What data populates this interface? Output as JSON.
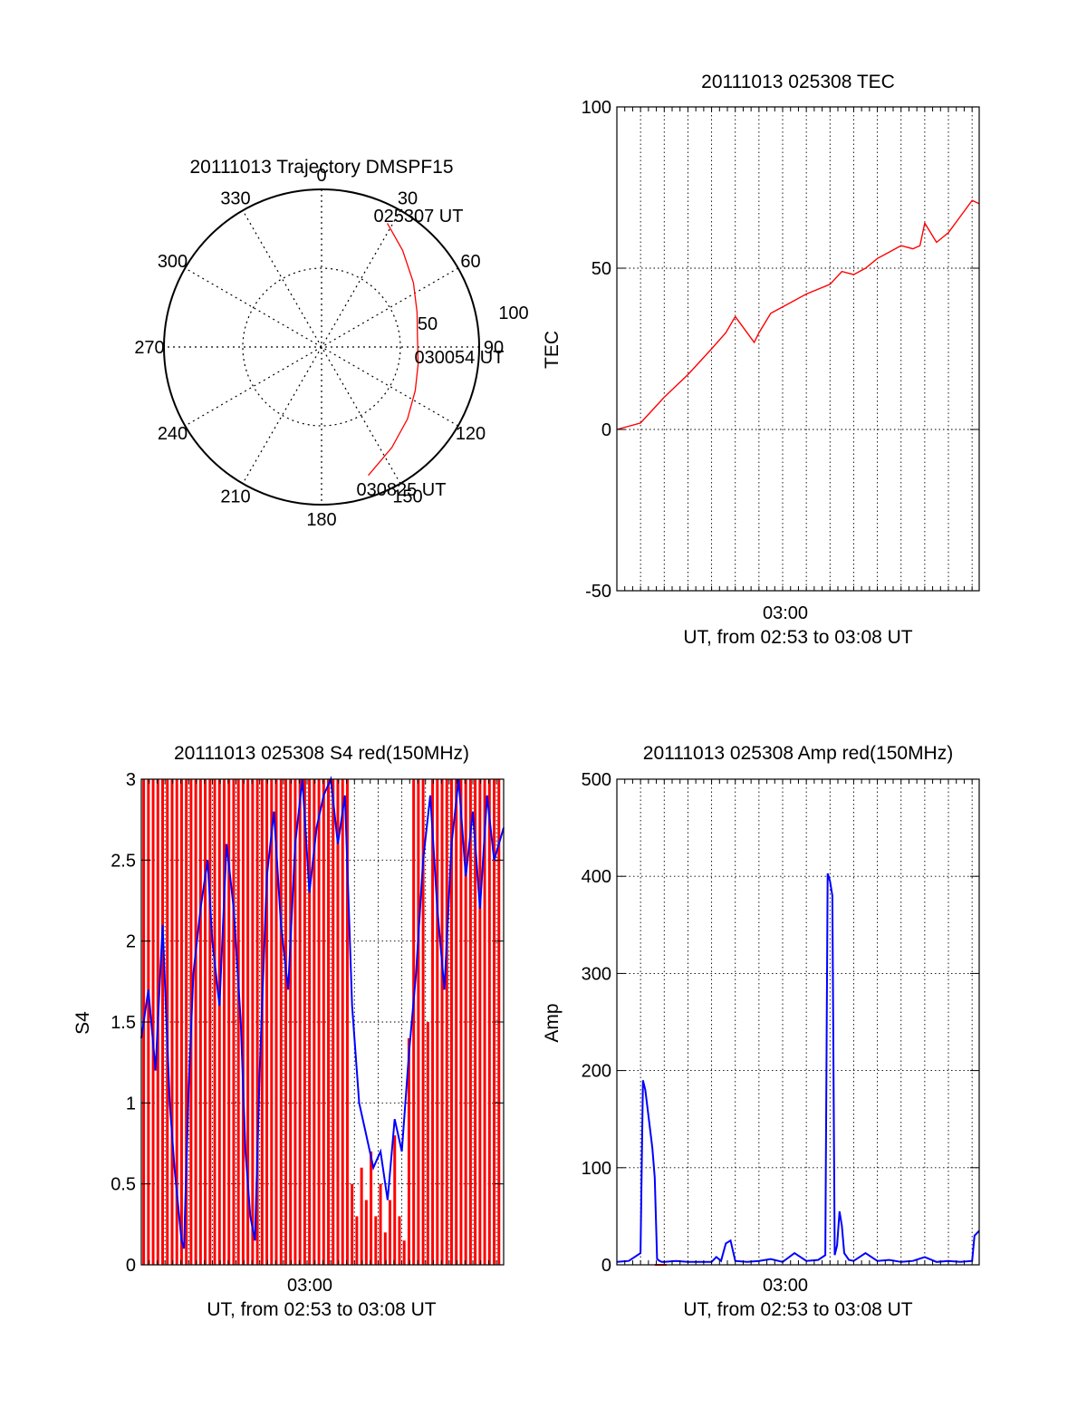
{
  "chart_data": [
    {
      "type": "polar",
      "title": "20111013 Trajectory DMSPF15",
      "angle_labels": [
        "0",
        "30",
        "60",
        "90",
        "120",
        "150",
        "180",
        "210",
        "240",
        "270",
        "300",
        "330"
      ],
      "radius_labels": [
        "50",
        "100"
      ],
      "rlim": [
        0,
        100
      ],
      "grid": true,
      "color": "#ff0000",
      "trajectory": {
        "azimuth": [
          28,
          40,
          55,
          70,
          85,
          100,
          115,
          130,
          145,
          160
        ],
        "elevation": [
          10,
          18,
          26,
          32,
          35,
          34,
          31,
          26,
          20,
          12
        ]
      },
      "annotations": [
        {
          "text": "025307 UT"
        },
        {
          "text": "030054 UT"
        },
        {
          "text": "030825 UT"
        }
      ]
    },
    {
      "type": "line",
      "title": "20111013 025308 TEC",
      "xlabel": "UT, from 02:53 to 03:08 UT",
      "ylabel": "TEC",
      "xticklabels": [
        "03:00"
      ],
      "xlim": [
        0,
        15.3
      ],
      "ylim": [
        -50,
        100
      ],
      "yticks": [
        -50,
        0,
        50,
        100
      ],
      "grid": true,
      "series": [
        {
          "color": "#ff0000",
          "x": [
            0,
            1.0,
            2.0,
            3.0,
            4.0,
            4.6,
            5.0,
            5.8,
            6.0,
            6.5,
            7.0,
            8.0,
            9.0,
            9.5,
            10.0,
            10.5,
            11.0,
            11.5,
            12.0,
            12.5,
            12.8,
            13.0,
            13.5,
            14.0,
            14.5,
            15.0,
            15.3
          ],
          "y": [
            0,
            2,
            10,
            17,
            25,
            30,
            35,
            27,
            30,
            36,
            38,
            42,
            45,
            49,
            48,
            50,
            53,
            55,
            57,
            56,
            57,
            64,
            58,
            61,
            66,
            71,
            70
          ]
        }
      ]
    },
    {
      "type": "line",
      "title": "20111013 025308 S4 red(150MHz)",
      "xlabel": "UT, from 02:53 to 03:08 UT",
      "ylabel": "S4",
      "xticklabels": [
        "03:00"
      ],
      "xlim": [
        0,
        15.3
      ],
      "ylim": [
        0,
        3
      ],
      "yticks": [
        0,
        0.5,
        1,
        1.5,
        2,
        2.5,
        3
      ],
      "grid": true,
      "series": [
        {
          "color": "#ff0000",
          "x": [
            0.1,
            0.3,
            0.5,
            0.7,
            0.9,
            1.1,
            1.3,
            1.5,
            1.7,
            1.9,
            2.1,
            2.3,
            2.5,
            2.7,
            2.9,
            3.1,
            3.3,
            3.5,
            3.7,
            3.9,
            4.1,
            4.3,
            4.5,
            4.7,
            4.9,
            5.1,
            5.3,
            5.5,
            5.7,
            5.9,
            6.1,
            6.3,
            6.5,
            6.7,
            6.9,
            7.1,
            7.3,
            7.5,
            7.7,
            7.9,
            8.1,
            8.3,
            8.5,
            8.7,
            8.9,
            9.1,
            9.3,
            9.5,
            9.7,
            9.9,
            10.1,
            10.3,
            10.5,
            10.7,
            10.9,
            11.1,
            11.3,
            11.5,
            11.7,
            11.9,
            12.1,
            12.3,
            12.5,
            12.7,
            12.9,
            13.1,
            13.3,
            13.5,
            13.7,
            13.9,
            14.1,
            14.3,
            14.5,
            14.7,
            14.9,
            15.1
          ],
          "y": [
            3,
            3,
            3,
            3,
            3,
            3,
            3,
            3,
            3,
            3,
            3,
            3,
            3,
            3,
            3,
            3,
            3,
            3,
            3,
            3,
            3,
            3,
            3,
            3,
            3,
            3,
            3,
            3,
            3,
            3,
            3,
            3,
            3,
            3,
            3,
            3,
            3,
            3,
            3,
            3,
            3,
            3,
            3,
            3,
            0.5,
            0.3,
            0.6,
            0.4,
            0.7,
            0.3,
            0.5,
            0.2,
            0.4,
            0.8,
            0.3,
            0.15,
            1.4,
            3,
            3,
            3,
            1.5,
            3,
            3,
            3,
            3,
            3,
            3,
            3,
            3,
            3,
            3,
            3,
            3,
            3,
            3,
            3
          ]
        },
        {
          "color": "#0000ff",
          "x": [
            0,
            0.3,
            0.6,
            0.9,
            1.2,
            1.4,
            1.6,
            1.7,
            1.8,
            2.0,
            2.2,
            2.5,
            2.8,
            3.0,
            3.3,
            3.6,
            3.9,
            4.2,
            4.4,
            4.6,
            4.8,
            5.0,
            5.3,
            5.6,
            5.9,
            6.2,
            6.5,
            6.8,
            7.1,
            7.4,
            7.7,
            8.0,
            8.3,
            8.6,
            8.9,
            9.2,
            9.5,
            9.8,
            10.1,
            10.4,
            10.7,
            11.0,
            11.3,
            11.6,
            11.9,
            12.2,
            12.5,
            12.8,
            13.1,
            13.4,
            13.7,
            14.0,
            14.3,
            14.6,
            14.9,
            15.3
          ],
          "y": [
            1.4,
            1.7,
            1.2,
            2.1,
            1.0,
            0.6,
            0.3,
            0.15,
            0.1,
            1.1,
            1.8,
            2.2,
            2.5,
            2.0,
            1.6,
            2.6,
            2.2,
            1.5,
            0.7,
            0.3,
            0.15,
            1.2,
            2.4,
            2.8,
            2.1,
            1.7,
            2.6,
            3.0,
            2.3,
            2.7,
            2.9,
            3.0,
            2.6,
            2.9,
            1.6,
            1.0,
            0.8,
            0.6,
            0.7,
            0.4,
            0.9,
            0.7,
            1.3,
            1.8,
            2.5,
            2.9,
            2.2,
            1.7,
            2.6,
            3.0,
            2.4,
            2.8,
            2.2,
            2.9,
            2.5,
            2.7
          ]
        }
      ]
    },
    {
      "type": "line",
      "title": "20111013 025308 Amp red(150MHz)",
      "xlabel": "UT, from 02:53 to 03:08 UT",
      "ylabel": "Amp",
      "xticklabels": [
        "03:00"
      ],
      "xlim": [
        0,
        15.3
      ],
      "ylim": [
        0,
        500
      ],
      "yticks": [
        0,
        100,
        200,
        300,
        400,
        500
      ],
      "grid": true,
      "series": [
        {
          "color": "#0000ff",
          "x": [
            0,
            0.5,
            1.0,
            1.1,
            1.2,
            1.3,
            1.4,
            1.5,
            1.6,
            1.7,
            1.8,
            1.9,
            2.0,
            2.5,
            3.0,
            4.0,
            4.2,
            4.4,
            4.6,
            4.8,
            5.0,
            5.5,
            6.0,
            6.5,
            7.0,
            7.5,
            8.0,
            8.5,
            8.8,
            8.9,
            9.0,
            9.1,
            9.2,
            9.3,
            9.4,
            9.5,
            9.6,
            9.8,
            10.0,
            10.5,
            11.0,
            11.5,
            12.0,
            12.5,
            13.0,
            13.5,
            14.0,
            14.5,
            15.0,
            15.1,
            15.3
          ],
          "y": [
            3,
            4,
            12,
            190,
            180,
            160,
            140,
            120,
            90,
            6,
            4,
            3,
            3,
            4,
            3,
            3,
            8,
            4,
            22,
            25,
            4,
            3,
            4,
            6,
            3,
            12,
            4,
            5,
            10,
            403,
            395,
            380,
            10,
            20,
            55,
            40,
            12,
            5,
            4,
            12,
            4,
            5,
            3,
            4,
            8,
            3,
            4,
            3,
            4,
            30,
            35
          ]
        },
        {
          "color": "#ff0000",
          "x": [
            1.6,
            2.1
          ],
          "y": [
            0,
            0
          ]
        }
      ]
    }
  ]
}
